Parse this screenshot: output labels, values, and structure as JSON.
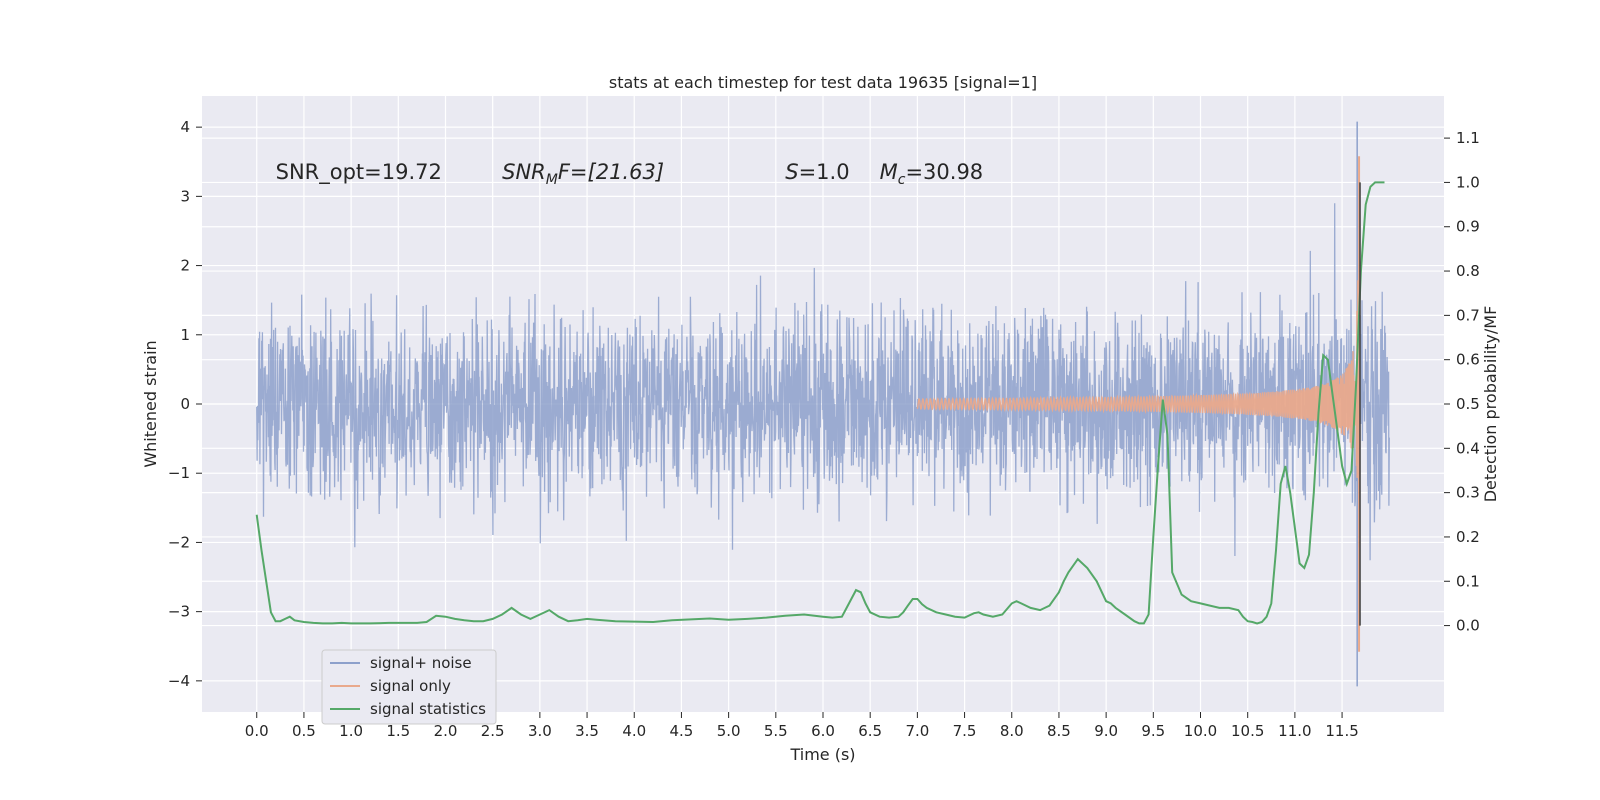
{
  "chart_data": {
    "type": "line",
    "title": "stats at each timestep for test data 19635 [signal=1]",
    "xlabel": "Time (s)",
    "ylabel_left": "Whitened strain",
    "ylabel_right": "Detection probability/MF",
    "xlim": [
      -0.58,
      12.58
    ],
    "ylim_left": [
      -4.45,
      4.45
    ],
    "ylim_right": [
      -0.195,
      1.195
    ],
    "x_ticks": [
      0.0,
      0.5,
      1.0,
      1.5,
      2.0,
      2.5,
      3.0,
      3.5,
      4.0,
      4.5,
      5.0,
      5.5,
      6.0,
      6.5,
      7.0,
      7.5,
      8.0,
      8.5,
      9.0,
      9.5,
      10.0,
      10.5,
      11.0,
      11.5
    ],
    "x_tick_labels": [
      "0.0",
      "0.5",
      "1.0",
      "1.5",
      "2.0",
      "2.5",
      "3.0",
      "3.5",
      "4.0",
      "4.5",
      "5.0",
      "5.5",
      "6.0",
      "6.5",
      "7.0",
      "7.5",
      "8.0",
      "8.5",
      "9.0",
      "9.5",
      "10.0",
      "10.5",
      "11.0",
      "11.5"
    ],
    "y_ticks_left": [
      4,
      3,
      2,
      1,
      0,
      -1,
      -2,
      -3,
      -4
    ],
    "y_tick_labels_left": [
      "4",
      "3",
      "2",
      "1",
      "0",
      "−1",
      "−2",
      "−3",
      "−4"
    ],
    "y_ticks_right": [
      1.1,
      1.0,
      0.9,
      0.8,
      0.7,
      0.6,
      0.5,
      0.4,
      0.3,
      0.2,
      0.1,
      0.0
    ],
    "y_tick_labels_right": [
      "1.1",
      "1.0",
      "0.9",
      "0.8",
      "0.7",
      "0.6",
      "0.5",
      "0.4",
      "0.3",
      "0.2",
      "0.1",
      "0.0"
    ],
    "grid": true,
    "legend_position": "bottom-left",
    "annotations": [
      {
        "text": "SNR_opt=19.72",
        "x": 0.2
      },
      {
        "text": "SNRMF=[21.63]",
        "x": 2.6
      },
      {
        "text": "S=1.0",
        "x": 5.6
      },
      {
        "text": "Mc=30.98",
        "x": 6.6
      }
    ],
    "annotation_y": 3.25,
    "annotation_parts": {
      "snr_mf_name": "SNR",
      "snr_mf_sub": "M",
      "snr_mf_tail": "F=[21.63]",
      "s_name": "S",
      "s_tail": "=1.0",
      "mc_name": "M",
      "mc_sub": "c",
      "mc_tail": "=30.98"
    },
    "series": [
      {
        "name": "signal+ noise",
        "axis": "left",
        "color": "#8da0cb",
        "description_values": {
          "x_start": 0.0,
          "x_end": 12.0,
          "typical_band": [
            -1.3,
            1.3
          ],
          "max_spike": 4.08,
          "min_spike": -4.08
        }
      },
      {
        "name": "signal only",
        "axis": "left",
        "color": "#e9a98c",
        "chirp": {
          "t_start": 7.0,
          "t_merger": 11.68,
          "peak_amplitude": 3.58
        }
      },
      {
        "name": "signal statistics",
        "axis": "right",
        "color": "#55a868",
        "x": [
          0.0,
          0.05,
          0.1,
          0.15,
          0.2,
          0.25,
          0.3,
          0.35,
          0.4,
          0.5,
          0.6,
          0.7,
          0.8,
          0.9,
          1.0,
          1.2,
          1.4,
          1.6,
          1.7,
          1.8,
          1.9,
          2.0,
          2.1,
          2.2,
          2.3,
          2.4,
          2.5,
          2.6,
          2.7,
          2.8,
          2.9,
          3.0,
          3.1,
          3.2,
          3.3,
          3.4,
          3.5,
          3.6,
          3.8,
          4.0,
          4.2,
          4.4,
          4.6,
          4.8,
          5.0,
          5.2,
          5.4,
          5.6,
          5.8,
          6.0,
          6.1,
          6.2,
          6.25,
          6.3,
          6.35,
          6.4,
          6.45,
          6.5,
          6.6,
          6.7,
          6.8,
          6.85,
          6.9,
          6.95,
          7.0,
          7.05,
          7.1,
          7.2,
          7.3,
          7.4,
          7.5,
          7.6,
          7.65,
          7.7,
          7.8,
          7.9,
          8.0,
          8.05,
          8.1,
          8.2,
          8.3,
          8.4,
          8.5,
          8.55,
          8.6,
          8.7,
          8.8,
          8.9,
          9.0,
          9.05,
          9.1,
          9.2,
          9.3,
          9.35,
          9.4,
          9.45,
          9.5,
          9.55,
          9.6,
          9.65,
          9.7,
          9.8,
          9.9,
          10.0,
          10.1,
          10.2,
          10.3,
          10.4,
          10.45,
          10.5,
          10.55,
          10.6,
          10.65,
          10.7,
          10.75,
          10.8,
          10.85,
          10.9,
          10.95,
          11.0,
          11.05,
          11.1,
          11.15,
          11.2,
          11.25,
          11.3,
          11.35,
          11.4,
          11.45,
          11.5,
          11.55,
          11.6,
          11.65,
          11.7,
          11.75,
          11.8,
          11.85,
          11.9,
          11.95
        ],
        "values": [
          0.25,
          0.17,
          0.1,
          0.03,
          0.01,
          0.01,
          0.015,
          0.02,
          0.012,
          0.008,
          0.006,
          0.005,
          0.005,
          0.006,
          0.005,
          0.005,
          0.006,
          0.006,
          0.006,
          0.008,
          0.022,
          0.02,
          0.015,
          0.012,
          0.01,
          0.01,
          0.015,
          0.025,
          0.04,
          0.025,
          0.015,
          0.025,
          0.035,
          0.02,
          0.01,
          0.012,
          0.015,
          0.013,
          0.01,
          0.009,
          0.008,
          0.012,
          0.014,
          0.016,
          0.013,
          0.015,
          0.018,
          0.022,
          0.025,
          0.02,
          0.018,
          0.02,
          0.04,
          0.06,
          0.08,
          0.075,
          0.05,
          0.03,
          0.02,
          0.018,
          0.02,
          0.03,
          0.045,
          0.06,
          0.06,
          0.048,
          0.04,
          0.03,
          0.025,
          0.02,
          0.018,
          0.028,
          0.03,
          0.025,
          0.02,
          0.025,
          0.05,
          0.055,
          0.05,
          0.04,
          0.035,
          0.045,
          0.075,
          0.1,
          0.12,
          0.15,
          0.13,
          0.1,
          0.055,
          0.05,
          0.04,
          0.025,
          0.01,
          0.005,
          0.005,
          0.025,
          0.2,
          0.36,
          0.51,
          0.43,
          0.12,
          0.07,
          0.055,
          0.05,
          0.045,
          0.04,
          0.04,
          0.035,
          0.02,
          0.01,
          0.008,
          0.005,
          0.008,
          0.02,
          0.05,
          0.17,
          0.32,
          0.36,
          0.3,
          0.22,
          0.14,
          0.13,
          0.16,
          0.3,
          0.48,
          0.61,
          0.6,
          0.52,
          0.44,
          0.36,
          0.32,
          0.35,
          0.55,
          0.8,
          0.95,
          0.99,
          1.0,
          1.0,
          1.0
        ]
      }
    ],
    "merger_line_x": 11.69
  }
}
